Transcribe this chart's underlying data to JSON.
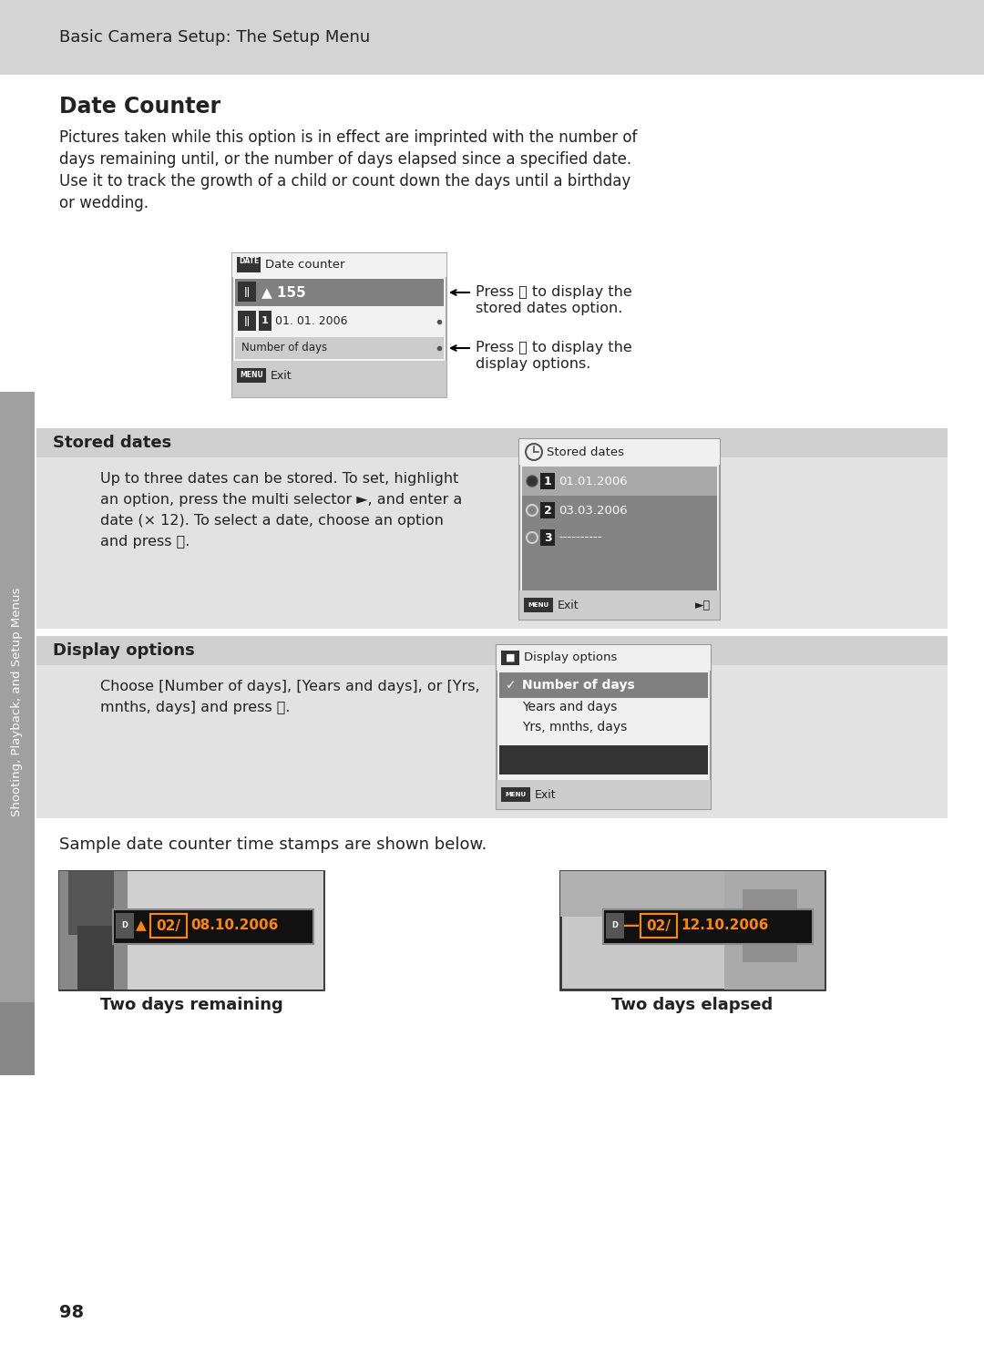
{
  "page_bg": "#ffffff",
  "header_bg": "#d4d4d4",
  "header_text": "Basic Camera Setup: The Setup Menu",
  "title": "Date Counter",
  "body_text_1": "Pictures taken while this option is in effect are imprinted with the number of",
  "body_text_2": "days remaining until, or the number of days elapsed since a specified date.",
  "body_text_3": "Use it to track the growth of a child or count down the days until a birthday",
  "body_text_4": "or wedding.",
  "section_bg": "#e2e2e2",
  "stored_dates_title": "Stored dates",
  "stored_dates_body_1": "Up to three dates can be stored. To set, highlight",
  "stored_dates_body_2": "an option, press the multi selector ►, and enter a",
  "stored_dates_body_3": "date (× 12). To select a date, choose an option",
  "stored_dates_body_4": "and press ⒪.",
  "display_options_title": "Display options",
  "display_options_body_1": "Choose [Number of days], [Years and days], or [Yrs,",
  "display_options_body_2": "mnths, days] and press ⒪.",
  "sample_text": "Sample date counter time stamps are shown below.",
  "two_days_remaining": "Two days remaining",
  "two_days_elapsed": "Two days elapsed",
  "page_number": "98",
  "sidebar_text": "Shooting, Playback, and Setup Menus",
  "press_ok_stored_1": "Press ⒪ to display the",
  "press_ok_stored_2": "stored dates option.",
  "press_ok_display_1": "Press ⒪ to display the",
  "press_ok_display_2": "display options."
}
